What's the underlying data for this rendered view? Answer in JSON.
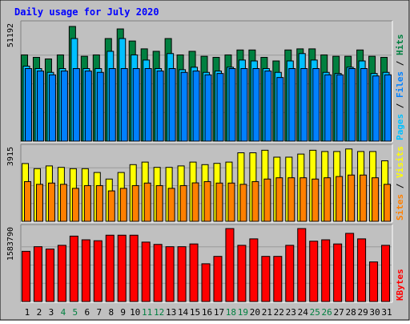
{
  "title": "Daily usage for July 2020",
  "colors": {
    "background": "#c0c0c0",
    "title": "#0000ff",
    "hits": "#008040",
    "files": "#00c0ff",
    "pages": "#0080ff",
    "visits": "#ffff00",
    "sites": "#ff8000",
    "kbytes": "#ff0000",
    "weekend_label": "#008040",
    "weekday_label": "#000000"
  },
  "chart_data": [
    {
      "type": "bar",
      "panel": "hits-files-pages",
      "max_label": "51192",
      "ylim": [
        0,
        51192
      ],
      "legend": {
        "hits": "Hits",
        "files": "Files",
        "pages": "Pages",
        "sep": " / "
      },
      "categories": [
        "1",
        "2",
        "3",
        "4",
        "5",
        "6",
        "7",
        "8",
        "9",
        "10",
        "11",
        "12",
        "13",
        "14",
        "15",
        "16",
        "17",
        "18",
        "19",
        "20",
        "21",
        "22",
        "23",
        "24",
        "25",
        "26",
        "27",
        "28",
        "29",
        "30",
        "31"
      ],
      "series": [
        {
          "name": "Hits",
          "values": [
            38500,
            37400,
            36700,
            38500,
            51200,
            37900,
            38500,
            45800,
            50100,
            44700,
            41200,
            40100,
            45800,
            38500,
            40100,
            37900,
            37400,
            38500,
            40700,
            40700,
            37400,
            35800,
            40700,
            41200,
            41200,
            38500,
            37900,
            37900,
            40700,
            37900,
            37400
          ]
        },
        {
          "name": "Files",
          "values": [
            33500,
            32400,
            30700,
            32400,
            45800,
            32400,
            32400,
            40100,
            45800,
            38500,
            36200,
            32400,
            39100,
            31900,
            33000,
            30700,
            31300,
            33000,
            36200,
            35800,
            32400,
            30700,
            35800,
            39100,
            36200,
            30700,
            30200,
            33000,
            35800,
            30200,
            30700
          ]
        },
        {
          "name": "Pages",
          "values": [
            32400,
            31300,
            29600,
            31300,
            32400,
            31300,
            30700,
            32400,
            32400,
            32400,
            32400,
            31300,
            32400,
            30700,
            31300,
            29600,
            30200,
            32400,
            32400,
            32400,
            31300,
            28400,
            32400,
            32400,
            32400,
            29600,
            29600,
            32400,
            32400,
            29100,
            29600
          ]
        }
      ]
    },
    {
      "type": "bar",
      "panel": "visits-sites",
      "max_label": "3915",
      "ylim": [
        0,
        3915
      ],
      "legend": {
        "visits": "Visits",
        "sites": "Sites",
        "sep": " / "
      },
      "categories": [
        "1",
        "2",
        "3",
        "4",
        "5",
        "6",
        "7",
        "8",
        "9",
        "10",
        "11",
        "12",
        "13",
        "14",
        "15",
        "16",
        "17",
        "18",
        "19",
        "20",
        "21",
        "22",
        "23",
        "24",
        "25",
        "26",
        "27",
        "28",
        "29",
        "30",
        "31"
      ],
      "series": [
        {
          "name": "Visits",
          "values": [
            3170,
            2890,
            3040,
            2960,
            2890,
            2890,
            2680,
            2320,
            2680,
            3110,
            3250,
            2960,
            2960,
            3040,
            3250,
            3110,
            3180,
            3250,
            3760,
            3760,
            3900,
            3520,
            3520,
            3690,
            3900,
            3830,
            3830,
            3970,
            3830,
            3830,
            3320
          ]
        },
        {
          "name": "Sites",
          "values": [
            2180,
            2030,
            2100,
            2030,
            1810,
            1960,
            1960,
            1670,
            1810,
            1960,
            2100,
            1960,
            1810,
            1960,
            2110,
            2180,
            2100,
            2100,
            2030,
            2180,
            2320,
            2390,
            2390,
            2390,
            2320,
            2390,
            2460,
            2540,
            2540,
            2390,
            2030
          ]
        }
      ]
    },
    {
      "type": "bar",
      "panel": "kbytes",
      "max_label": "1583790",
      "ylim": [
        0,
        1583790
      ],
      "legend": {
        "kbytes": "KBytes"
      },
      "categories": [
        "1",
        "2",
        "3",
        "4",
        "5",
        "6",
        "7",
        "8",
        "9",
        "10",
        "11",
        "12",
        "13",
        "14",
        "15",
        "16",
        "17",
        "18",
        "19",
        "20",
        "21",
        "22",
        "23",
        "24",
        "25",
        "26",
        "27",
        "28",
        "29",
        "30",
        "31"
      ],
      "series": [
        {
          "name": "KBytes",
          "values": [
            1090000,
            1190000,
            1140000,
            1220000,
            1420000,
            1340000,
            1320000,
            1440000,
            1440000,
            1440000,
            1290000,
            1240000,
            1190000,
            1190000,
            1250000,
            820000,
            980000,
            1590000,
            1220000,
            1360000,
            980000,
            980000,
            1220000,
            1590000,
            1310000,
            1340000,
            1250000,
            1480000,
            1360000,
            860000,
            1220000
          ]
        }
      ]
    }
  ],
  "weekend_days": [
    "4",
    "5",
    "11",
    "12",
    "18",
    "19",
    "25",
    "26"
  ]
}
